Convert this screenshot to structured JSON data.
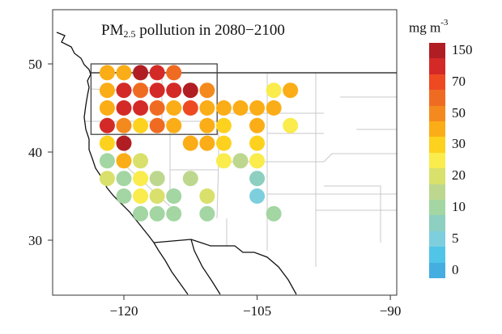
{
  "title_prefix": "PM",
  "title_sub": "2.5",
  "title_suffix": " pollution in 2080−2100",
  "x_ticks": [
    {
      "value": -120,
      "label": "−120"
    },
    {
      "value": -105,
      "label": "−105"
    },
    {
      "value": -90,
      "label": "−90"
    }
  ],
  "y_ticks": [
    {
      "value": 30,
      "label": "30"
    },
    {
      "value": 40,
      "label": "40"
    },
    {
      "value": 50,
      "label": "50"
    }
  ],
  "extent": {
    "lon": [
      -128,
      -89.5
    ],
    "lat": [
      23.5,
      56
    ]
  },
  "highlight_box": {
    "lon": [
      -123.7,
      -109.5
    ],
    "lat": [
      42,
      50
    ]
  },
  "legend": {
    "unit": "mg m",
    "unit_exp": "-3",
    "labels": [
      "150",
      "70",
      "50",
      "30",
      "20",
      "10",
      "5",
      "0"
    ],
    "colors": [
      "#b01e23",
      "#d42a27",
      "#ee4a22",
      "#f06b22",
      "#f48a1e",
      "#fbad17",
      "#fdd21f",
      "#f9ec4c",
      "#d9e06b",
      "#bdd88e",
      "#a3d6a2",
      "#8dcfc0",
      "#7dcfde",
      "#51c5e8",
      "#45aee0"
    ]
  },
  "grid_lons": [
    -121.875,
    -120,
    -118.125,
    -116.25,
    -114.375,
    -112.5,
    -110.625,
    -108.75,
    -106.875,
    -105,
    -103.125,
    -101.25
  ],
  "rows": [
    {
      "lat": 49,
      "cells": [
        [
          0,
          "#fbad17"
        ],
        [
          1,
          "#fbad17"
        ],
        [
          2,
          "#b01e23"
        ],
        [
          3,
          "#d42a27"
        ],
        [
          4,
          "#f06b22"
        ]
      ]
    },
    {
      "lat": 47,
      "cells": [
        [
          0,
          "#fbad17"
        ],
        [
          1,
          "#d42a27"
        ],
        [
          2,
          "#f06b22"
        ],
        [
          3,
          "#d42a27"
        ],
        [
          4,
          "#d42a27"
        ],
        [
          5,
          "#b01e23"
        ],
        [
          6,
          "#f48a1e"
        ],
        [
          10,
          "#f9ec4c"
        ],
        [
          11,
          "#fbad17"
        ]
      ]
    },
    {
      "lat": 45,
      "cells": [
        [
          0,
          "#fbad17"
        ],
        [
          1,
          "#d42a27"
        ],
        [
          2,
          "#d42a27"
        ],
        [
          3,
          "#f06b22"
        ],
        [
          4,
          "#fbad17"
        ],
        [
          5,
          "#ee4a22"
        ],
        [
          6,
          "#fbad17"
        ],
        [
          7,
          "#fbad17"
        ],
        [
          8,
          "#fbad17"
        ],
        [
          9,
          "#fbad17"
        ],
        [
          10,
          "#fbad17"
        ]
      ]
    },
    {
      "lat": 43,
      "cells": [
        [
          0,
          "#d42a27"
        ],
        [
          1,
          "#f48a1e"
        ],
        [
          2,
          "#fdd21f"
        ],
        [
          3,
          "#f06b22"
        ],
        [
          4,
          "#fbad17"
        ],
        [
          6,
          "#fbad17"
        ],
        [
          7,
          "#fdd21f"
        ],
        [
          9,
          "#fbad17"
        ],
        [
          11,
          "#f9ec4c"
        ]
      ]
    },
    {
      "lat": 41,
      "cells": [
        [
          0,
          "#fdd21f"
        ],
        [
          1,
          "#b01e23"
        ],
        [
          5,
          "#fbad17"
        ],
        [
          6,
          "#fbad17"
        ],
        [
          7,
          "#fdd21f"
        ],
        [
          9,
          "#fdd21f"
        ]
      ]
    },
    {
      "lat": 39,
      "cells": [
        [
          0,
          "#a3d6a2"
        ],
        [
          1,
          "#fbad17"
        ],
        [
          2,
          "#d9e06b"
        ],
        [
          7,
          "#f9ec4c"
        ],
        [
          8,
          "#bdd88e"
        ],
        [
          9,
          "#f9ec4c"
        ]
      ]
    },
    {
      "lat": 37,
      "cells": [
        [
          0,
          "#d9e06b"
        ],
        [
          1,
          "#a3d6a2"
        ],
        [
          2,
          "#f9ec4c"
        ],
        [
          3,
          "#bdd88e"
        ],
        [
          5,
          "#bdd88e"
        ],
        [
          9,
          "#8dcfc0"
        ]
      ]
    },
    {
      "lat": 35,
      "cells": [
        [
          1,
          "#a3d6a2"
        ],
        [
          2,
          "#f9ec4c"
        ],
        [
          3,
          "#d9e06b"
        ],
        [
          4,
          "#a3d6a2"
        ],
        [
          6,
          "#d9e06b"
        ],
        [
          9,
          "#7dcfde"
        ]
      ]
    },
    {
      "lat": 33,
      "cells": [
        [
          2,
          "#a3d6a2"
        ],
        [
          3,
          "#a3d6a2"
        ],
        [
          4,
          "#a3d6a2"
        ],
        [
          6,
          "#a3d6a2"
        ],
        [
          10,
          "#a3d6a2"
        ]
      ]
    }
  ]
}
